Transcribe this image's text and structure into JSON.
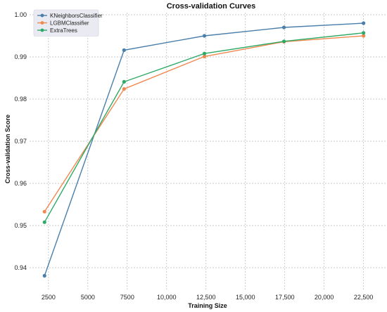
{
  "chart_data": {
    "type": "line",
    "title": "Cross-validation Curves",
    "xlabel": "Training Size",
    "ylabel": "Cross-validation Score",
    "x": [
      2250,
      7300,
      12400,
      17450,
      22500
    ],
    "xlim": [
      1300,
      23900
    ],
    "ylim": [
      0.9345,
      1.0005
    ],
    "xticks": [
      2500,
      5000,
      7500,
      10000,
      12500,
      15000,
      17500,
      20000,
      22500
    ],
    "xtick_labels": [
      "2500",
      "5000",
      "7500",
      "10,000",
      "12,500",
      "15,000",
      "17,500",
      "20,000",
      "22,500"
    ],
    "yticks": [
      0.94,
      0.95,
      0.96,
      0.97,
      0.98,
      0.99,
      1.0
    ],
    "ytick_labels": [
      "0.94",
      "0.95",
      "0.96",
      "0.97",
      "0.98",
      "0.99",
      "1.00"
    ],
    "grid": true,
    "legend_position": "top-left",
    "series": [
      {
        "name": "KNeighborsClassifier",
        "color": "#4a7fab",
        "values": [
          0.9381,
          0.9916,
          0.995,
          0.997,
          0.998
        ]
      },
      {
        "name": "LGBMClassifier",
        "color": "#f0884f",
        "values": [
          0.9533,
          0.9824,
          0.9901,
          0.9936,
          0.995
        ]
      },
      {
        "name": "ExtraTrees",
        "color": "#2eaa67",
        "values": [
          0.9508,
          0.9841,
          0.9908,
          0.9937,
          0.9957
        ]
      }
    ]
  }
}
